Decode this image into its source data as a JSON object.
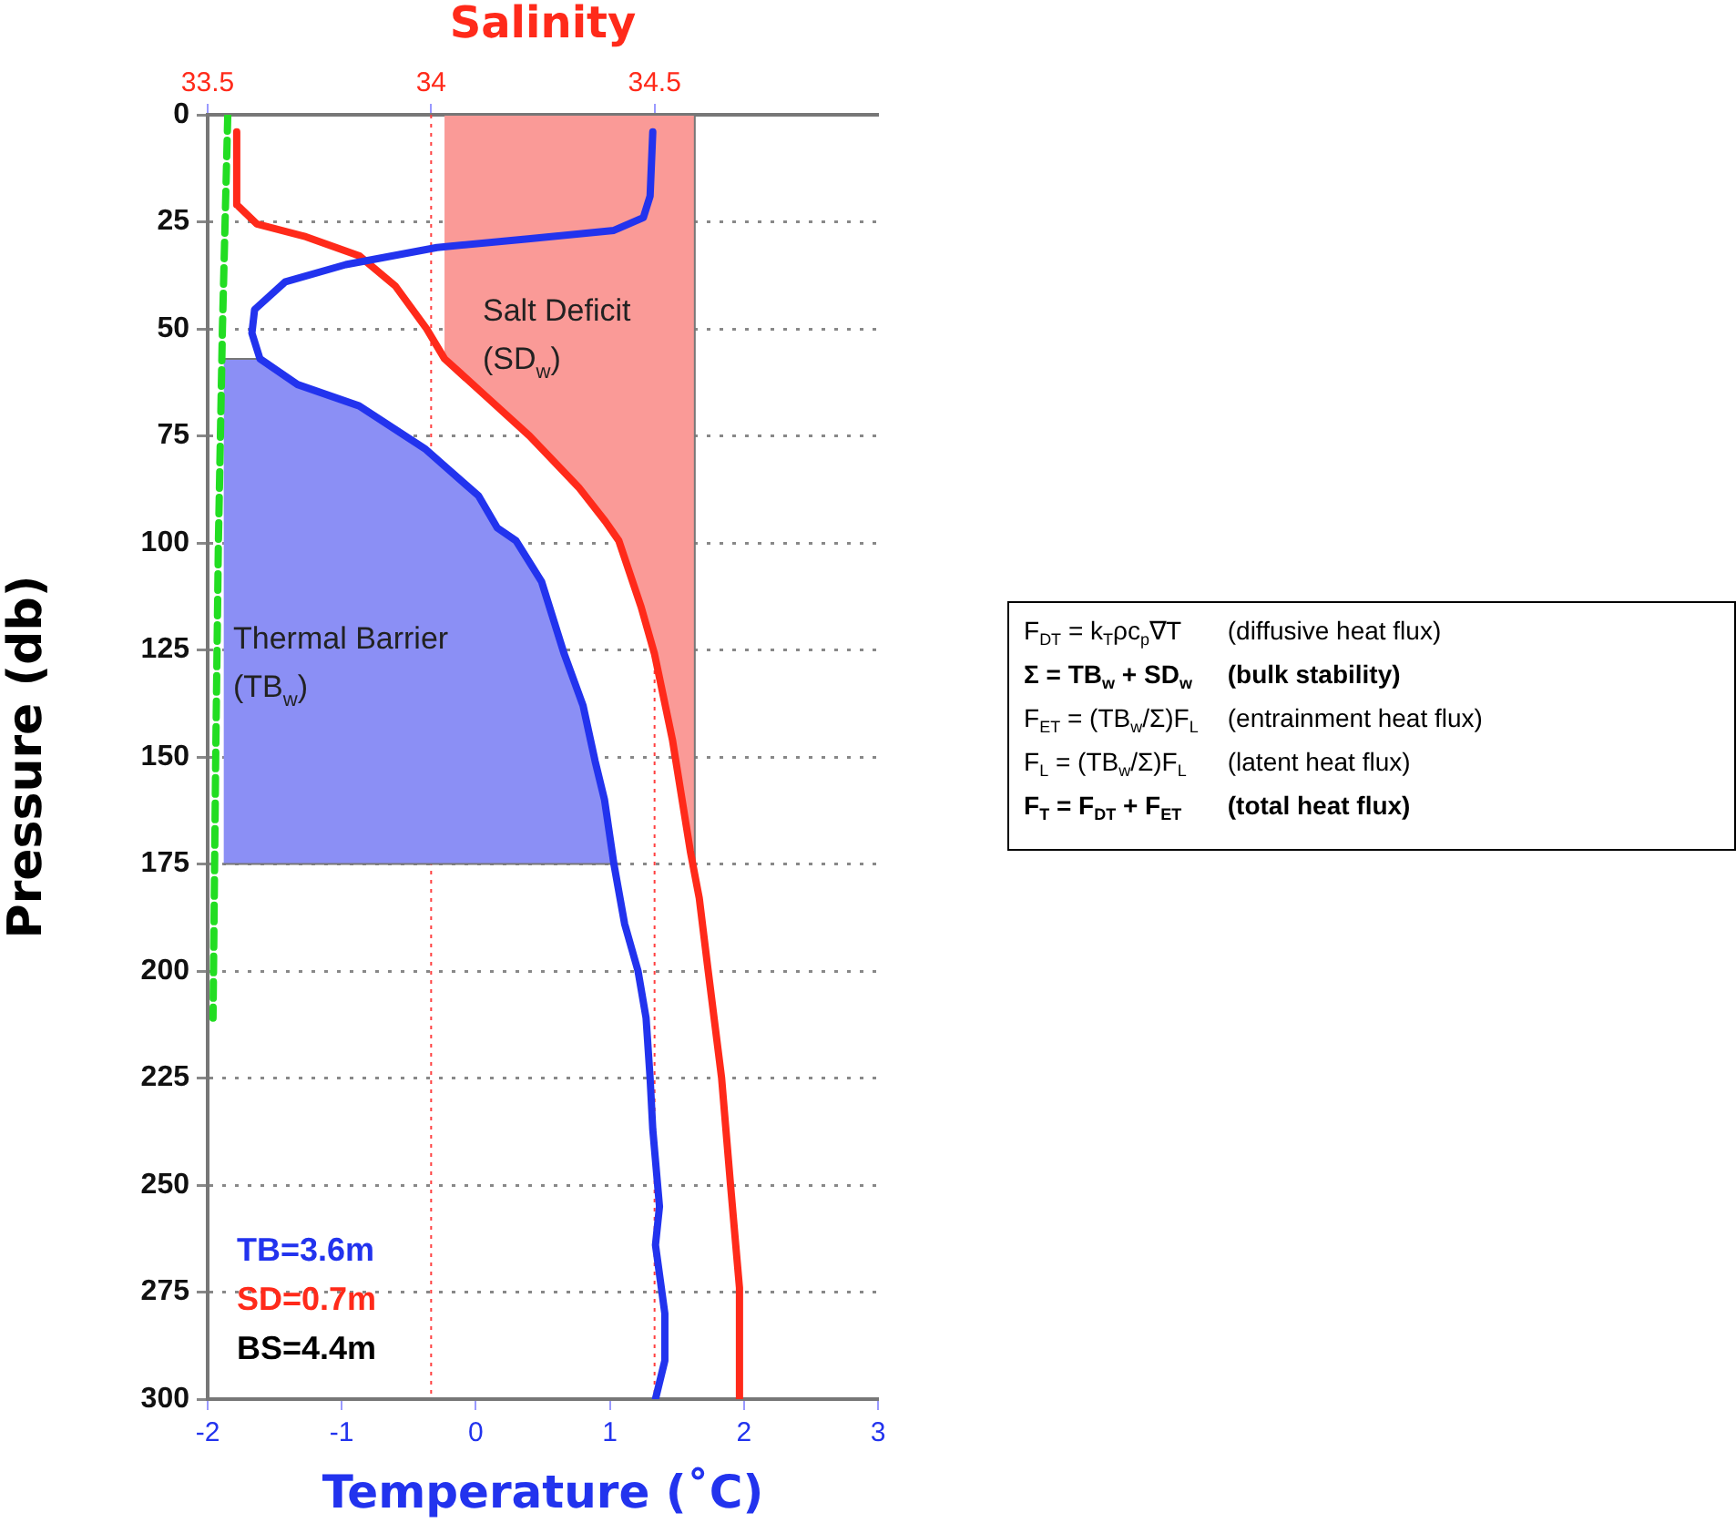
{
  "chart_data": {
    "type": "line",
    "xlabel": "Temperature (˚C)",
    "x2label": "Salinity",
    "ylabel": "Pressure (db)",
    "xlim": [
      -2,
      3
    ],
    "xticks": [
      -2,
      -1,
      0,
      1,
      2,
      3
    ],
    "x2lim": [
      33.5,
      35
    ],
    "x2ticks": [
      33.5,
      34,
      34.5
    ],
    "ylim": [
      300,
      0
    ],
    "yticks": [
      0,
      25,
      50,
      75,
      100,
      125,
      150,
      175,
      200,
      225,
      250,
      275,
      300
    ],
    "grid": "y",
    "ref_lines": [
      {
        "axis": "x2",
        "value": 34,
        "color": "#ff4040",
        "line_style": "dotted"
      },
      {
        "axis": "x2",
        "value": 34.5,
        "color": "#ff4040",
        "line_style": "dotted"
      }
    ],
    "series": [
      {
        "type": "area",
        "axis": "x2",
        "color": "#fa9a97",
        "x": [
          34.03,
          34.59,
          34.59,
          34.58,
          34.54,
          34.5,
          34.47,
          34.42,
          34.39,
          34.33,
          34.22,
          34.12,
          34.03
        ],
        "values": [
          0,
          0,
          175,
          172,
          146,
          126,
          115,
          99.5,
          95,
          87,
          75,
          65.5,
          57
        ]
      },
      {
        "type": "area",
        "color": "#8b8ff5",
        "x": [
          -1.88,
          -1.61,
          -1.33,
          -0.87,
          -0.38,
          0.02,
          0.16,
          0.3,
          0.49,
          0.66,
          0.8,
          0.89,
          0.96,
          1.03,
          -1.88
        ],
        "values": [
          57,
          57,
          63,
          68,
          78,
          89,
          96.5,
          99.5,
          109,
          126,
          138,
          151,
          160,
          175,
          175
        ]
      },
      {
        "type": "line",
        "line_style": "dashed",
        "color": "#22dd22",
        "x": [
          -1.85,
          -1.89,
          -1.92,
          -1.94,
          -1.96
        ],
        "values": [
          0,
          50,
          100,
          150,
          211
        ]
      },
      {
        "type": "line",
        "axis": "x2",
        "color": "#ff2a1a",
        "x": [
          33.565,
          33.565,
          33.61,
          33.72,
          33.84,
          33.92,
          33.99,
          34.03,
          34.12,
          34.22,
          34.33,
          34.39,
          34.42,
          34.47,
          34.5,
          34.54,
          34.58,
          34.6,
          34.62,
          34.65,
          34.67,
          34.69,
          34.69
        ],
        "values": [
          4,
          21,
          25.5,
          28.5,
          33,
          40,
          50,
          57,
          65.5,
          75,
          87,
          95,
          99.5,
          115,
          126,
          146,
          172,
          183,
          200,
          225,
          250,
          274,
          300
        ]
      },
      {
        "type": "line",
        "color": "#2233ee",
        "x": [
          1.32,
          1.3,
          1.25,
          1.03,
          0.39,
          -0.29,
          -0.97,
          -1.42,
          -1.65,
          -1.67,
          -1.61,
          -1.33,
          -0.87,
          -0.38,
          0.02,
          0.16,
          0.3,
          0.49,
          0.66,
          0.8,
          0.89,
          0.96,
          1.03,
          1.11,
          1.21,
          1.27,
          1.3,
          1.32,
          1.37,
          1.34,
          1.41,
          1.41,
          1.34
        ],
        "values": [
          4,
          19,
          24,
          27,
          29,
          31,
          35,
          39,
          45.5,
          51,
          57,
          63,
          68,
          78,
          89,
          96.5,
          99.5,
          109,
          126,
          138,
          151,
          160,
          175,
          189,
          200,
          211,
          225,
          237,
          255,
          264,
          280,
          291,
          300
        ]
      }
    ],
    "annotations": [
      "Salt Deficit\n(SD$_{w}$)",
      "Thermal Barrier\n(TB$_{w}$)",
      "TB=3.6m",
      "SD=0.7m",
      "BS=4.4m",
      "F$_{DT}$ = k$_{T}$ρc$_{p}$∇T",
      "(diffusive heat flux)",
      "Σ = TB$_{w}$ + SD$_{w}$",
      "(bulk stability)",
      "F$_{ET}$ = (TB$_{w}$/Σ)F$_{L}$",
      "(entrainment heat flux)",
      "F$_{L}$ = (TB$_{w}$/Σ)F$_{L}$",
      "(latent heat flux)",
      "F$_{T}$ = F$_{DT}$ + F$_{ET}$",
      "(total heat flux)"
    ]
  }
}
